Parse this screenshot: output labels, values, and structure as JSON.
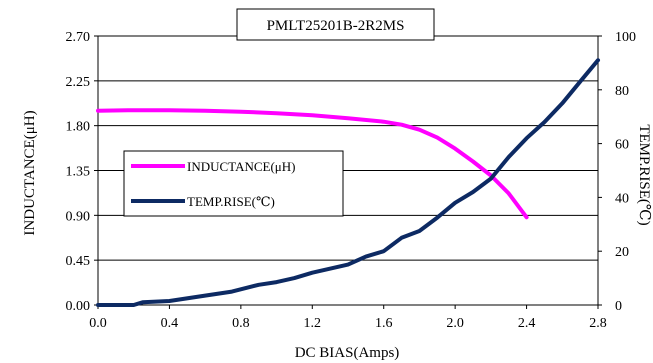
{
  "chart_data": {
    "type": "line",
    "title": "PMLT25201B-2R2MS",
    "xlabel": "DC BIAS(Amps)",
    "ylabel_left": "INDUCTANCE(μH)",
    "ylabel_right": "TEMP.RISE(℃)",
    "x_range": [
      0.0,
      2.8
    ],
    "x_ticks": [
      "0.0",
      "0.4",
      "0.8",
      "1.2",
      "1.6",
      "2.0",
      "2.4",
      "2.8"
    ],
    "y_left_range": [
      0.0,
      2.7
    ],
    "y_left_ticks": [
      "0.00",
      "0.45",
      "0.90",
      "1.35",
      "1.80",
      "2.25",
      "2.70"
    ],
    "y_right_range": [
      0,
      100
    ],
    "y_right_ticks": [
      "0",
      "20",
      "40",
      "60",
      "80",
      "100"
    ],
    "grid": "horizontal",
    "legend_placement": "left-middle",
    "series": [
      {
        "name": "INDUCTANCE(μH)",
        "axis": "left",
        "color": "#ff00ff",
        "points": [
          [
            0.0,
            1.95
          ],
          [
            0.2,
            1.955
          ],
          [
            0.4,
            1.955
          ],
          [
            0.6,
            1.95
          ],
          [
            0.8,
            1.94
          ],
          [
            1.0,
            1.925
          ],
          [
            1.2,
            1.905
          ],
          [
            1.4,
            1.875
          ],
          [
            1.6,
            1.84
          ],
          [
            1.7,
            1.81
          ],
          [
            1.8,
            1.76
          ],
          [
            1.9,
            1.68
          ],
          [
            2.0,
            1.57
          ],
          [
            2.1,
            1.44
          ],
          [
            2.2,
            1.3
          ],
          [
            2.3,
            1.12
          ],
          [
            2.4,
            0.88
          ]
        ]
      },
      {
        "name": "TEMP.RISE(℃)",
        "axis": "right",
        "color": "#0d2a63",
        "points": [
          [
            0.0,
            0
          ],
          [
            0.2,
            0
          ],
          [
            0.25,
            1
          ],
          [
            0.4,
            1.5
          ],
          [
            0.6,
            3.5
          ],
          [
            0.75,
            5
          ],
          [
            0.9,
            7.5
          ],
          [
            1.0,
            8.5
          ],
          [
            1.1,
            10
          ],
          [
            1.2,
            12
          ],
          [
            1.4,
            15
          ],
          [
            1.5,
            18
          ],
          [
            1.6,
            20
          ],
          [
            1.7,
            25
          ],
          [
            1.8,
            27.5
          ],
          [
            1.9,
            32.5
          ],
          [
            2.0,
            38
          ],
          [
            2.1,
            42
          ],
          [
            2.2,
            47
          ],
          [
            2.3,
            55
          ],
          [
            2.4,
            62
          ],
          [
            2.5,
            68
          ],
          [
            2.6,
            75
          ],
          [
            2.7,
            83
          ],
          [
            2.8,
            91
          ]
        ]
      }
    ]
  }
}
